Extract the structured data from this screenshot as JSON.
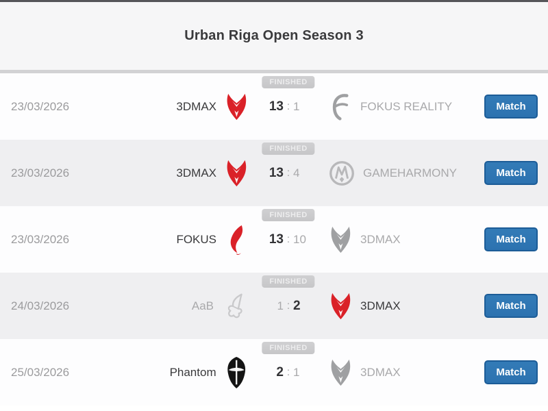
{
  "header": {
    "title": "Urban Riga Open Season 3"
  },
  "ui": {
    "match_button_label": "Match",
    "score_separator": ":"
  },
  "colors": {
    "header_bg": "#f6f6f7",
    "header_top_border": "#56565a",
    "divider": "#d2d2d4",
    "row_bg": "#fdfdfe",
    "row_alt_bg": "#efeff1",
    "badge_bg": "#c6c6c8",
    "badge_text": "#ededee",
    "date_text": "#9b9b9d",
    "winner_text": "#3a3a3c",
    "loser_text": "#a9a9ab",
    "button_bg": "#2c72b0",
    "button_border": "#1c5c97",
    "button_text": "#ffffff",
    "logo_red": "#da2128",
    "logo_gray": "#9fa0a2",
    "logo_light_gray": "#b8b8ba",
    "logo_faint_gray": "#c9c9cb",
    "logo_black": "#141414"
  },
  "matches": [
    {
      "date": "23/03/2026",
      "status": "FINISHED",
      "team1": {
        "name": "3DMAX",
        "icon": "devil-red",
        "winner": true
      },
      "score1": "13",
      "score2": "1",
      "team2": {
        "name": "FOKUS REALITY",
        "icon": "fokus-gray",
        "winner": false
      }
    },
    {
      "date": "23/03/2026",
      "status": "FINISHED",
      "team1": {
        "name": "3DMAX",
        "icon": "devil-red",
        "winner": true
      },
      "score1": "13",
      "score2": "4",
      "team2": {
        "name": "GAMEHARMONY",
        "icon": "gameharmony-gray",
        "winner": false
      }
    },
    {
      "date": "23/03/2026",
      "status": "FINISHED",
      "team1": {
        "name": "FOKUS",
        "icon": "fokus-red",
        "winner": true
      },
      "score1": "13",
      "score2": "10",
      "team2": {
        "name": "3DMAX",
        "icon": "devil-gray",
        "winner": false
      }
    },
    {
      "date": "24/03/2026",
      "status": "FINISHED",
      "team1": {
        "name": "AaB",
        "icon": "aab-gray",
        "winner": false
      },
      "score1": "1",
      "score2": "2",
      "team2": {
        "name": "3DMAX",
        "icon": "devil-red",
        "winner": true
      }
    },
    {
      "date": "25/03/2026",
      "status": "FINISHED",
      "team1": {
        "name": "Phantom",
        "icon": "phantom-black",
        "winner": true
      },
      "score1": "2",
      "score2": "1",
      "team2": {
        "name": "3DMAX",
        "icon": "devil-gray",
        "winner": false
      }
    }
  ]
}
